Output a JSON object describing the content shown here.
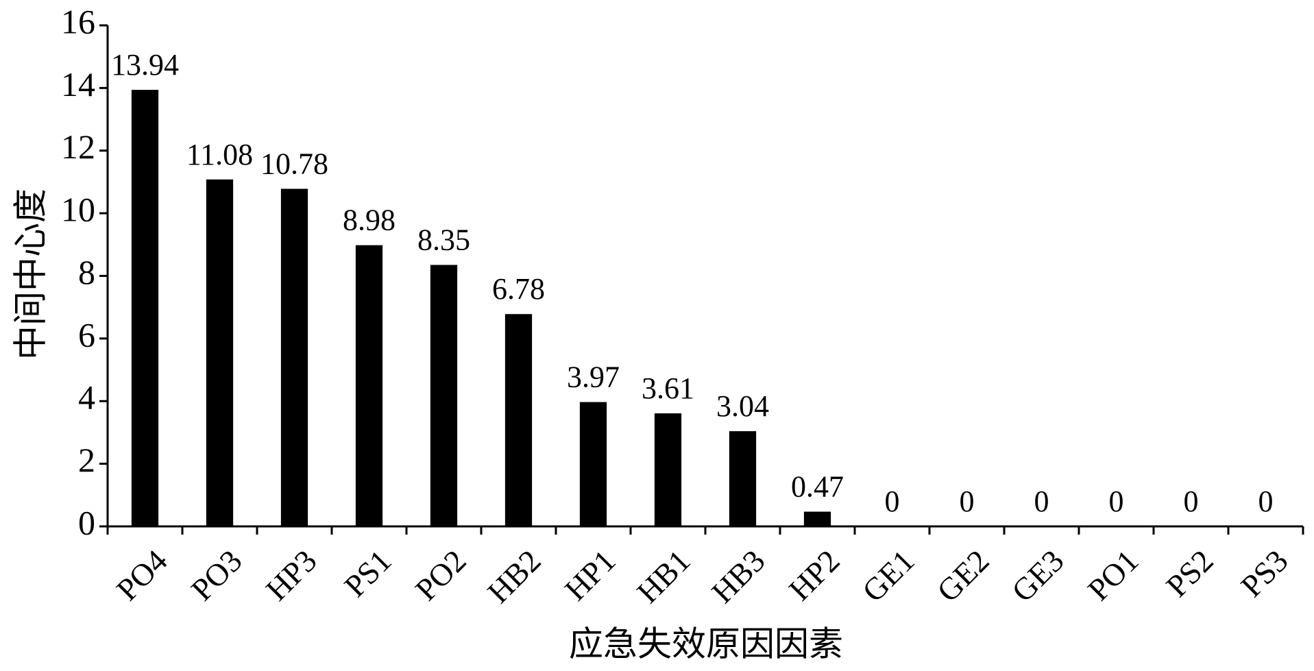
{
  "chart_data": {
    "type": "bar",
    "x_label": "应急失效原因因素",
    "y_label": "中间中心度",
    "categories": [
      "PO4",
      "PO3",
      "HP3",
      "PS1",
      "PO2",
      "HB2",
      "HP1",
      "HB1",
      "HB3",
      "HP2",
      "GE1",
      "GE2",
      "GE3",
      "PO1",
      "PS2",
      "PS3"
    ],
    "values": [
      13.94,
      11.08,
      10.78,
      8.98,
      8.35,
      6.78,
      3.97,
      3.61,
      3.04,
      0.47,
      0,
      0,
      0,
      0,
      0,
      0
    ],
    "color": "#000000",
    "ylim": [
      0,
      16
    ],
    "yticks": [
      0,
      2,
      4,
      6,
      8,
      10,
      12,
      14,
      16
    ],
    "grid": false
  }
}
